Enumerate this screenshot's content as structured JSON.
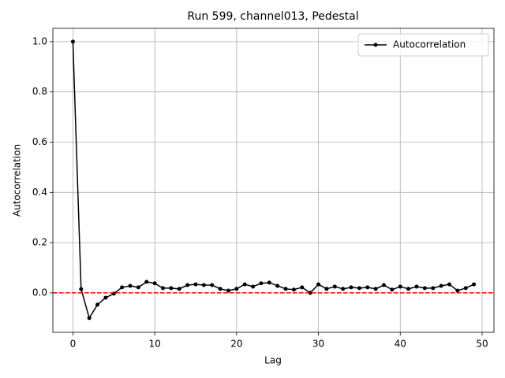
{
  "chart_data": {
    "type": "line",
    "title": "Run 599, channel013, Pedestal",
    "xlabel": "Lag",
    "ylabel": "Autocorrelation",
    "x": [
      0,
      1,
      2,
      3,
      4,
      5,
      6,
      7,
      8,
      9,
      10,
      11,
      12,
      13,
      14,
      15,
      16,
      17,
      18,
      19,
      20,
      21,
      22,
      23,
      24,
      25,
      26,
      27,
      28,
      29,
      30,
      31,
      32,
      33,
      34,
      35,
      36,
      37,
      38,
      39,
      40,
      41,
      42,
      43,
      44,
      45,
      46,
      47,
      48,
      49
    ],
    "series": [
      {
        "name": "Autocorrelation",
        "color": "#000000",
        "values": [
          1.0,
          0.015,
          -0.1,
          -0.047,
          -0.019,
          -0.003,
          0.022,
          0.028,
          0.022,
          0.044,
          0.038,
          0.019,
          0.019,
          0.016,
          0.031,
          0.034,
          0.031,
          0.031,
          0.016,
          0.009,
          0.016,
          0.034,
          0.025,
          0.038,
          0.041,
          0.028,
          0.016,
          0.013,
          0.022,
          0.0,
          0.034,
          0.016,
          0.025,
          0.016,
          0.022,
          0.019,
          0.022,
          0.016,
          0.031,
          0.013,
          0.025,
          0.016,
          0.025,
          0.019,
          0.019,
          0.028,
          0.034,
          0.009,
          0.019,
          0.034
        ]
      }
    ],
    "hline": {
      "value": 0,
      "color": "#ff0000"
    },
    "xlim": [
      -2.45,
      51.45
    ],
    "xticks": [
      0,
      10,
      20,
      30,
      40,
      50
    ],
    "ylim": [
      -0.157,
      1.053
    ],
    "yticks": [
      {
        "value": 0,
        "label": "0.0"
      },
      0.2,
      0.4,
      0.6,
      0.8,
      {
        "value": 1,
        "label": "1.0"
      }
    ],
    "grid": true,
    "legend": "upper right"
  }
}
